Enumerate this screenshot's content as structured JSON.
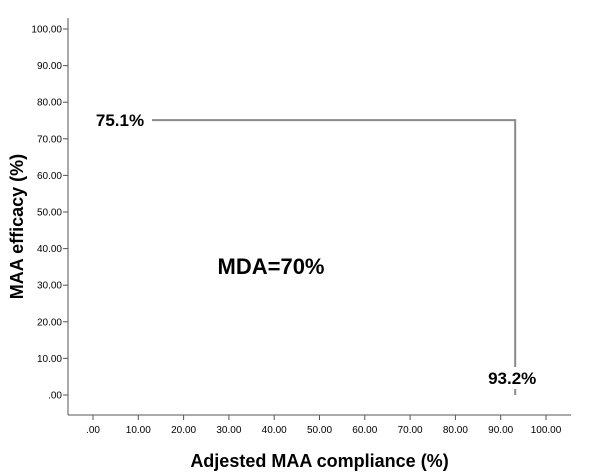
{
  "chart_data": {
    "type": "line",
    "title": "",
    "xlabel": "Adjested MAA compliance (%)",
    "ylabel": "MAA efficacy (%)",
    "xlim": [
      0,
      100
    ],
    "ylim": [
      -3,
      104
    ],
    "x_ticks": [
      ".00",
      "10.00",
      "20.00",
      "30.00",
      "40.00",
      "50.00",
      "60.00",
      "70.00",
      "80.00",
      "90.00",
      "100.00"
    ],
    "y_ticks": [
      ".00",
      "10.00",
      "20.00",
      "30.00",
      "40.00",
      "50.00",
      "60.00",
      "70.00",
      "80.00",
      "90.00",
      "100.00"
    ],
    "grid": false,
    "series": [
      {
        "x": [
          0,
          93.2,
          93.2
        ],
        "y": [
          75.1,
          75.1,
          0
        ]
      }
    ],
    "annotations": [
      {
        "text": "75.1%",
        "x": 0,
        "y": 75.1
      },
      {
        "text": "93.2%",
        "x": 93.2,
        "y": 0
      },
      {
        "text": "MDA=70%",
        "x": 34,
        "y": 33
      }
    ],
    "colors": {
      "line": "#8a8a8a",
      "axis": "#555555"
    }
  }
}
